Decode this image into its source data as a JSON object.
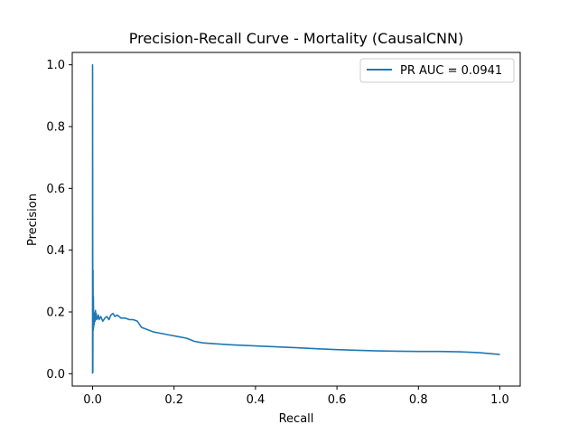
{
  "chart_data": {
    "type": "line",
    "title": "Precision-Recall Curve - Mortality (CausalCNN)",
    "xlabel": "Recall",
    "ylabel": "Precision",
    "xlim": [
      -0.05,
      1.05
    ],
    "ylim": [
      -0.04,
      1.04
    ],
    "xticks": [
      0.0,
      0.2,
      0.4,
      0.6,
      0.8,
      1.0
    ],
    "xtick_labels": [
      "0.0",
      "0.2",
      "0.4",
      "0.6",
      "0.8",
      "1.0"
    ],
    "yticks": [
      0.0,
      0.2,
      0.4,
      0.6,
      0.8,
      1.0
    ],
    "ytick_labels": [
      "0.0",
      "0.2",
      "0.4",
      "0.6",
      "0.8",
      "1.0"
    ],
    "grid": false,
    "legend_position": "top-right",
    "series": [
      {
        "name": "PR AUC = 0.0941",
        "color": "#1f77b4",
        "x": [
          0.0,
          0.0,
          0.0005,
          0.001,
          0.0015,
          0.002,
          0.0025,
          0.003,
          0.004,
          0.005,
          0.006,
          0.007,
          0.008,
          0.009,
          0.01,
          0.012,
          0.014,
          0.016,
          0.018,
          0.02,
          0.025,
          0.03,
          0.035,
          0.04,
          0.045,
          0.05,
          0.055,
          0.06,
          0.07,
          0.08,
          0.09,
          0.1,
          0.11,
          0.12,
          0.13,
          0.14,
          0.15,
          0.17,
          0.19,
          0.21,
          0.23,
          0.25,
          0.27,
          0.3,
          0.35,
          0.4,
          0.45,
          0.5,
          0.55,
          0.6,
          0.65,
          0.7,
          0.75,
          0.8,
          0.85,
          0.9,
          0.95,
          1.0
        ],
        "y": [
          0.0,
          1.0,
          0.005,
          0.335,
          0.14,
          0.25,
          0.15,
          0.2,
          0.16,
          0.19,
          0.17,
          0.205,
          0.18,
          0.195,
          0.175,
          0.18,
          0.19,
          0.175,
          0.18,
          0.185,
          0.17,
          0.18,
          0.185,
          0.175,
          0.19,
          0.195,
          0.185,
          0.19,
          0.18,
          0.18,
          0.175,
          0.175,
          0.17,
          0.15,
          0.145,
          0.14,
          0.135,
          0.13,
          0.125,
          0.12,
          0.115,
          0.105,
          0.1,
          0.097,
          0.093,
          0.09,
          0.087,
          0.084,
          0.081,
          0.078,
          0.076,
          0.074,
          0.073,
          0.072,
          0.072,
          0.071,
          0.068,
          0.062
        ]
      }
    ]
  }
}
